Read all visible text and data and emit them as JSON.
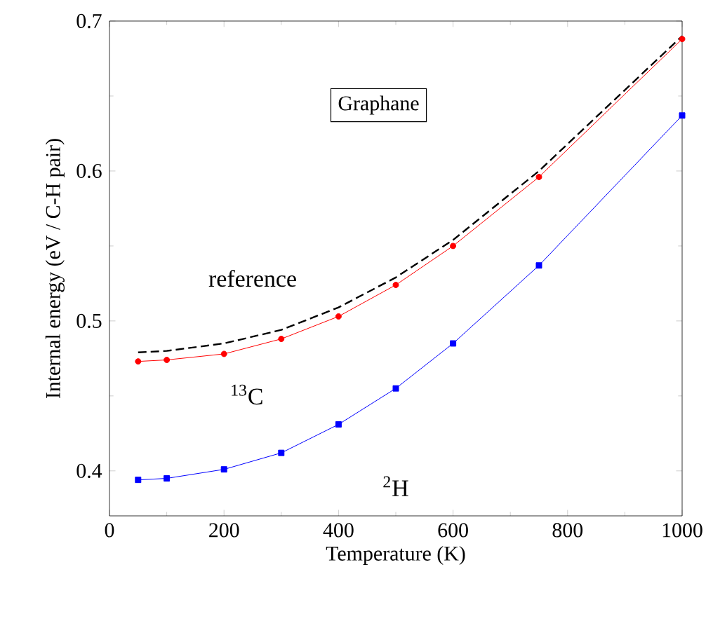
{
  "chart_data": {
    "type": "line",
    "xlabel": "Temperature  (K)",
    "ylabel": "Internal  energy  (eV / C-H pair)",
    "annotations": [
      "Graphane"
    ],
    "x": [
      50,
      100,
      200,
      300,
      400,
      500,
      600,
      750,
      1000
    ],
    "series": [
      {
        "name": "reference",
        "color": "#000000",
        "marker": "none",
        "line_style": "dashed",
        "values": [
          0.479,
          0.48,
          0.485,
          0.494,
          0.509,
          0.529,
          0.554,
          0.6,
          0.69
        ]
      },
      {
        "name": "$^{13}$C",
        "color": "#ff0000",
        "marker": "circle",
        "line_style": "solid",
        "values": [
          0.473,
          0.474,
          0.478,
          0.488,
          0.503,
          0.524,
          0.55,
          0.596,
          0.688
        ]
      },
      {
        "name": "$^{2}$H",
        "color": "#0000ff",
        "marker": "square",
        "line_style": "solid",
        "values": [
          0.394,
          0.395,
          0.401,
          0.412,
          0.431,
          0.455,
          0.485,
          0.537,
          0.637
        ]
      }
    ],
    "xlim": [
      0,
      1000
    ],
    "ylim": [
      0.37,
      0.7
    ],
    "xticks": [
      0,
      200,
      400,
      600,
      800,
      1000
    ],
    "yticks": [
      0.4,
      0.5,
      0.6,
      0.7
    ],
    "grid": false,
    "legend": false
  }
}
